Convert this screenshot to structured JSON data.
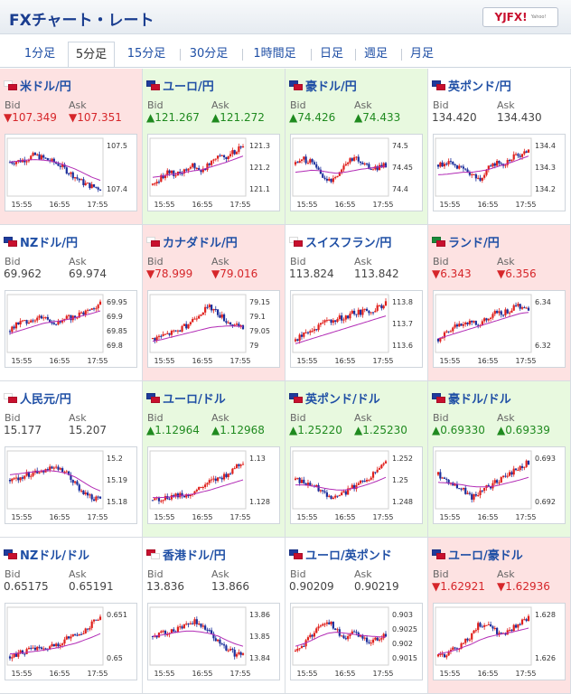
{
  "header": {
    "title": "FXチャート・レート",
    "logo": "YJFX!",
    "logo_sub": "Yahoo!"
  },
  "tabs": [
    {
      "label": "1分足",
      "active": false
    },
    {
      "label": "5分足",
      "active": true
    },
    {
      "label": "15分足",
      "active": false
    },
    {
      "label": "30分足",
      "active": false
    },
    {
      "label": "1時間足",
      "active": false
    },
    {
      "label": "日足",
      "active": false
    },
    {
      "label": "週足",
      "active": false
    },
    {
      "label": "月足",
      "active": false
    }
  ],
  "labels": {
    "bid": "Bid",
    "ask": "Ask"
  },
  "x_ticks": [
    "15:55",
    "16:55",
    "17:55"
  ],
  "colors": {
    "up_bg": "#e8f9df",
    "down_bg": "#fde2e2",
    "up_text": "#1f8a1f",
    "down_text": "#d6262a",
    "candle_up": "#e0201c",
    "candle_down": "#1c2f9c",
    "ma": "#b22bb5"
  },
  "pairs": [
    {
      "name": "米ドル/円",
      "dir": "down",
      "bid": "▼107.349",
      "ask": "▼107.351",
      "flags": [
        "#ffffff",
        "#c8102e"
      ],
      "y_ticks": [
        "107.5",
        "107.4"
      ],
      "shape": [
        0.6,
        0.62,
        0.66,
        0.74,
        0.68,
        0.62,
        0.55,
        0.42,
        0.3,
        0.18,
        0.12,
        0.08
      ],
      "ma_shape": [
        0.6,
        0.62,
        0.64,
        0.65,
        0.64,
        0.62,
        0.58,
        0.52,
        0.46,
        0.38,
        0.3,
        0.24
      ]
    },
    {
      "name": "ユーロ/円",
      "dir": "up",
      "bid": "▲121.267",
      "ask": "▲121.272",
      "flags": [
        "#1f3b9c",
        "#c8102e"
      ],
      "y_ticks": [
        "121.3",
        "121.2",
        "121.1"
      ],
      "shape": [
        0.15,
        0.3,
        0.4,
        0.35,
        0.45,
        0.55,
        0.4,
        0.62,
        0.75,
        0.7,
        0.82,
        0.9
      ],
      "ma_shape": [
        0.3,
        0.32,
        0.35,
        0.37,
        0.4,
        0.43,
        0.45,
        0.5,
        0.55,
        0.6,
        0.66,
        0.72
      ]
    },
    {
      "name": "豪ドル/円",
      "dir": "up",
      "bid": "▲74.426",
      "ask": "▲74.433",
      "flags": [
        "#1f3b9c",
        "#c8102e"
      ],
      "y_ticks": [
        "74.5",
        "74.45",
        "74.4"
      ],
      "shape": [
        0.55,
        0.65,
        0.6,
        0.4,
        0.2,
        0.35,
        0.55,
        0.7,
        0.6,
        0.5,
        0.48,
        0.55
      ],
      "ma_shape": [
        0.4,
        0.42,
        0.44,
        0.43,
        0.4,
        0.38,
        0.4,
        0.43,
        0.46,
        0.48,
        0.5,
        0.52
      ]
    },
    {
      "name": "英ポンド/円",
      "dir": "flat",
      "bid": "134.420",
      "ask": "134.430",
      "flags": [
        "#1f3b9c",
        "#c8102e"
      ],
      "y_ticks": [
        "134.4",
        "134.3",
        "134.2"
      ],
      "shape": [
        0.55,
        0.6,
        0.5,
        0.45,
        0.35,
        0.25,
        0.45,
        0.6,
        0.55,
        0.7,
        0.72,
        0.85
      ],
      "ma_shape": [
        0.35,
        0.36,
        0.38,
        0.4,
        0.4,
        0.42,
        0.45,
        0.5,
        0.55,
        0.6,
        0.66,
        0.72
      ]
    },
    {
      "name": "NZドル/円",
      "dir": "flat",
      "bid": "69.962",
      "ask": "69.974",
      "flags": [
        "#1f3b9c",
        "#c8102e"
      ],
      "y_ticks": [
        "69.95",
        "69.9",
        "69.85",
        "69.8"
      ],
      "shape": [
        0.35,
        0.5,
        0.55,
        0.6,
        0.65,
        0.55,
        0.5,
        0.6,
        0.65,
        0.72,
        0.8,
        0.88
      ],
      "ma_shape": [
        0.3,
        0.35,
        0.4,
        0.45,
        0.5,
        0.53,
        0.55,
        0.58,
        0.62,
        0.66,
        0.7,
        0.75
      ]
    },
    {
      "name": "カナダドル/円",
      "dir": "down",
      "bid": "▼78.999",
      "ask": "▼79.016",
      "flags": [
        "#ffffff",
        "#c8102e"
      ],
      "y_ticks": [
        "79.15",
        "79.1",
        "79.05",
        "79"
      ],
      "shape": [
        0.2,
        0.25,
        0.3,
        0.35,
        0.45,
        0.6,
        0.75,
        0.82,
        0.7,
        0.55,
        0.45,
        0.4
      ],
      "ma_shape": [
        0.15,
        0.18,
        0.22,
        0.26,
        0.3,
        0.34,
        0.38,
        0.42,
        0.44,
        0.45,
        0.45,
        0.44
      ]
    },
    {
      "name": "スイスフラン/円",
      "dir": "flat",
      "bid": "113.824",
      "ask": "113.842",
      "flags": [
        "#ffffff",
        "#c8102e"
      ],
      "y_ticks": [
        "113.8",
        "113.7",
        "113.6"
      ],
      "shape": [
        0.15,
        0.3,
        0.35,
        0.45,
        0.55,
        0.6,
        0.62,
        0.7,
        0.72,
        0.75,
        0.82,
        0.9
      ],
      "ma_shape": [
        0.1,
        0.15,
        0.2,
        0.25,
        0.3,
        0.35,
        0.4,
        0.45,
        0.5,
        0.55,
        0.6,
        0.65
      ]
    },
    {
      "name": "ランド/円",
      "dir": "down",
      "bid": "▼6.343",
      "ask": "▼6.356",
      "flags": [
        "#1a8a3a",
        "#c8102e"
      ],
      "y_ticks": [
        "6.34",
        "6.32"
      ],
      "shape": [
        0.2,
        0.3,
        0.45,
        0.5,
        0.55,
        0.45,
        0.6,
        0.7,
        0.72,
        0.8,
        0.85,
        0.78
      ],
      "ma_shape": [
        0.2,
        0.25,
        0.3,
        0.35,
        0.4,
        0.45,
        0.5,
        0.55,
        0.6,
        0.65,
        0.7,
        0.72
      ]
    },
    {
      "name": "人民元/円",
      "dir": "flat",
      "bid": "15.177",
      "ask": "15.207",
      "flags": [
        "#ffffff",
        "#c8102e"
      ],
      "y_ticks": [
        "15.2",
        "15.19",
        "15.18"
      ],
      "shape": [
        0.5,
        0.55,
        0.6,
        0.65,
        0.7,
        0.72,
        0.7,
        0.6,
        0.4,
        0.25,
        0.15,
        0.1
      ],
      "ma_shape": [
        0.6,
        0.62,
        0.64,
        0.66,
        0.68,
        0.68,
        0.66,
        0.62,
        0.55,
        0.45,
        0.35,
        0.28
      ]
    },
    {
      "name": "ユーロ/ドル",
      "dir": "up",
      "bid": "▲1.12964",
      "ask": "▲1.12968",
      "flags": [
        "#1f3b9c",
        "#c8102e"
      ],
      "y_ticks": [
        "1.13",
        "1.128"
      ],
      "shape": [
        0.1,
        0.12,
        0.15,
        0.2,
        0.18,
        0.25,
        0.35,
        0.45,
        0.5,
        0.6,
        0.75,
        0.85
      ],
      "ma_shape": [
        0.15,
        0.15,
        0.16,
        0.18,
        0.2,
        0.22,
        0.26,
        0.3,
        0.35,
        0.4,
        0.45,
        0.5
      ]
    },
    {
      "name": "英ポンド/ドル",
      "dir": "up",
      "bid": "▲1.25220",
      "ask": "▲1.25230",
      "flags": [
        "#1f3b9c",
        "#c8102e"
      ],
      "y_ticks": [
        "1.252",
        "1.25",
        "1.248"
      ],
      "shape": [
        0.5,
        0.45,
        0.4,
        0.3,
        0.2,
        0.15,
        0.25,
        0.35,
        0.45,
        0.55,
        0.7,
        0.85
      ],
      "ma_shape": [
        0.4,
        0.4,
        0.38,
        0.35,
        0.32,
        0.3,
        0.3,
        0.33,
        0.37,
        0.42,
        0.48,
        0.55
      ]
    },
    {
      "name": "豪ドル/ドル",
      "dir": "up",
      "bid": "▲0.69330",
      "ask": "▲0.69339",
      "flags": [
        "#1f3b9c",
        "#c8102e"
      ],
      "y_ticks": [
        "0.693",
        "0.692"
      ],
      "shape": [
        0.6,
        0.5,
        0.4,
        0.3,
        0.15,
        0.25,
        0.35,
        0.45,
        0.55,
        0.65,
        0.75,
        0.85
      ],
      "ma_shape": [
        0.45,
        0.44,
        0.42,
        0.4,
        0.37,
        0.36,
        0.36,
        0.38,
        0.42,
        0.46,
        0.5,
        0.55
      ]
    },
    {
      "name": "NZドル/ドル",
      "dir": "flat",
      "bid": "0.65175",
      "ask": "0.65191",
      "flags": [
        "#1f3b9c",
        "#c8102e"
      ],
      "y_ticks": [
        "0.651",
        "0.65"
      ],
      "shape": [
        0.1,
        0.15,
        0.2,
        0.25,
        0.22,
        0.3,
        0.35,
        0.45,
        0.5,
        0.6,
        0.75,
        0.88
      ],
      "ma_shape": [
        0.15,
        0.16,
        0.18,
        0.2,
        0.22,
        0.25,
        0.28,
        0.32,
        0.36,
        0.42,
        0.48,
        0.55
      ]
    },
    {
      "name": "香港ドル/円",
      "dir": "flat",
      "bid": "13.836",
      "ask": "13.866",
      "flags": [
        "#c8102e",
        "#ffffff"
      ],
      "y_ticks": [
        "13.86",
        "13.85",
        "13.84"
      ],
      "shape": [
        0.5,
        0.55,
        0.6,
        0.65,
        0.75,
        0.8,
        0.7,
        0.55,
        0.4,
        0.25,
        0.15,
        0.1
      ],
      "ma_shape": [
        0.5,
        0.52,
        0.55,
        0.58,
        0.6,
        0.6,
        0.58,
        0.55,
        0.5,
        0.42,
        0.35,
        0.3
      ]
    },
    {
      "name": "ユーロ/英ポンド",
      "dir": "flat",
      "bid": "0.90209",
      "ask": "0.90219",
      "flags": [
        "#1f3b9c",
        "#c8102e"
      ],
      "y_ticks": [
        "0.903",
        "0.9025",
        "0.902",
        "0.9015"
      ],
      "shape": [
        0.2,
        0.35,
        0.5,
        0.75,
        0.8,
        0.6,
        0.45,
        0.55,
        0.5,
        0.4,
        0.45,
        0.5
      ],
      "ma_shape": [
        0.3,
        0.35,
        0.42,
        0.5,
        0.56,
        0.58,
        0.56,
        0.54,
        0.52,
        0.5,
        0.49,
        0.48
      ]
    },
    {
      "name": "ユーロ/豪ドル",
      "dir": "down",
      "bid": "▼1.62921",
      "ask": "▼1.62936",
      "flags": [
        "#1f3b9c",
        "#c8102e"
      ],
      "y_ticks": [
        "1.628",
        "1.626"
      ],
      "shape": [
        0.1,
        0.15,
        0.25,
        0.35,
        0.5,
        0.75,
        0.7,
        0.6,
        0.55,
        0.65,
        0.75,
        0.85
      ],
      "ma_shape": [
        0.15,
        0.18,
        0.22,
        0.28,
        0.34,
        0.42,
        0.48,
        0.52,
        0.55,
        0.58,
        0.62,
        0.66
      ]
    }
  ]
}
